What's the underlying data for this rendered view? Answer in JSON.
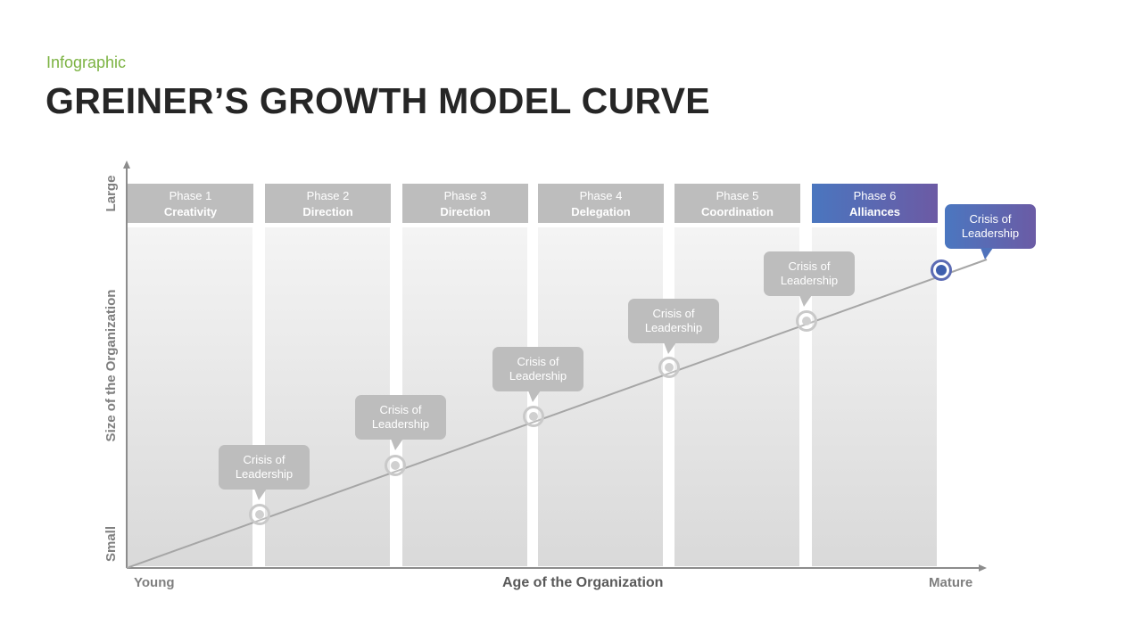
{
  "header": {
    "subtitle": "Infographic",
    "title": "GREINER’S GROWTH MODEL CURVE"
  },
  "axes": {
    "y_title": "Size of the Organization",
    "y_top": "Large",
    "y_bottom": "Small",
    "x_title": "Age of the Organization",
    "x_left": "Young",
    "x_right": "Mature"
  },
  "phases": [
    {
      "phase": "Phase 1",
      "name": "Creativity"
    },
    {
      "phase": "Phase 2",
      "name": "Direction"
    },
    {
      "phase": "Phase 3",
      "name": "Direction"
    },
    {
      "phase": "Phase 4",
      "name": "Delegation"
    },
    {
      "phase": "Phase 5",
      "name": "Coordination"
    },
    {
      "phase": "Phase 6",
      "name": "Alliances"
    }
  ],
  "crises": [
    {
      "line1": "Crisis of",
      "line2": "Leadership"
    },
    {
      "line1": "Crisis of",
      "line2": "Leadership"
    },
    {
      "line1": "Crisis of",
      "line2": "Leadership"
    },
    {
      "line1": "Crisis of",
      "line2": "Leadership"
    },
    {
      "line1": "Crisis of",
      "line2": "Leadership"
    },
    {
      "line1": "Crisis of",
      "line2": "Leadership"
    }
  ],
  "colors": {
    "accent_green": "#7cb342",
    "inactive_gray": "#bdbdbd",
    "active_blue": "#4a76bf",
    "active_purple": "#6c5aa4"
  }
}
